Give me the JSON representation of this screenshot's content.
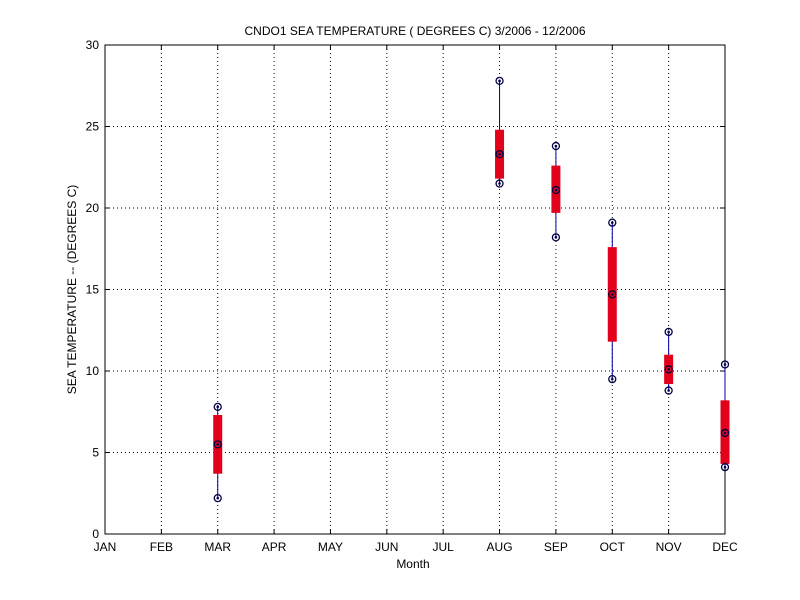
{
  "chart_data": {
    "type": "box",
    "title": "CNDO1  SEA TEMPERATURE ( DEGREES C) 3/2006 - 12/2006",
    "xlabel": "Month",
    "ylabel": "SEA TEMPERATURE -- (DEGREES C)",
    "categories": [
      "JAN",
      "FEB",
      "MAR",
      "APR",
      "MAY",
      "JUN",
      "JUL",
      "AUG",
      "SEP",
      "OCT",
      "NOV",
      "DEC"
    ],
    "ylim": [
      0,
      30
    ],
    "yticks": [
      0,
      5,
      10,
      15,
      20,
      25,
      30
    ],
    "grid": true,
    "boxes": [
      {
        "category": "MAR",
        "min": 2.2,
        "q1": 3.7,
        "median": 5.5,
        "q3": 7.3,
        "max": 7.8
      },
      {
        "category": "AUG",
        "min": 21.5,
        "q1": 21.8,
        "median": 23.3,
        "q3": 24.8,
        "max": 27.8
      },
      {
        "category": "SEP",
        "min": 18.2,
        "q1": 19.7,
        "median": 21.1,
        "q3": 22.6,
        "max": 23.8
      },
      {
        "category": "OCT",
        "min": 9.5,
        "q1": 11.8,
        "median": 14.7,
        "q3": 17.6,
        "max": 19.1
      },
      {
        "category": "NOV",
        "min": 8.8,
        "q1": 9.2,
        "median": 10.1,
        "q3": 11.0,
        "max": 12.4
      },
      {
        "category": "DEC",
        "min": 4.1,
        "q1": 4.3,
        "median": 6.2,
        "q3": 8.2,
        "max": 10.4
      }
    ],
    "colors": {
      "box": "#e3001b",
      "whisker": "#0000aa",
      "marker": "#000044",
      "axis": "#000000",
      "grid": "#000000"
    }
  }
}
